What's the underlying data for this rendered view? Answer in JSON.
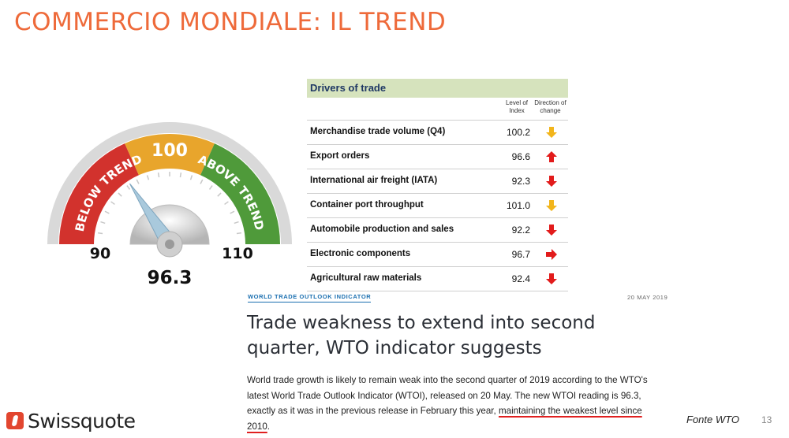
{
  "slide": {
    "title": "COMMERCIO MONDIALE: IL TREND",
    "source": "Fonte WTO",
    "page_number": "13"
  },
  "gauge": {
    "label_below": "BELOW TREND",
    "label_mid": "100",
    "label_above": "ABOVE TREND",
    "min_label": "90",
    "max_label": "110",
    "value_label": "96.3",
    "min": 90,
    "max": 110,
    "value": 96.3,
    "colors": {
      "below": "#d2322d",
      "mid": "#e8a52c",
      "above": "#4f9a3a"
    }
  },
  "drivers": {
    "title": "Drivers of trade",
    "col_level": "Level of Index",
    "col_direction": "Direction of change",
    "rows": [
      {
        "label": "Merchandise trade volume (Q4)",
        "value": "100.2",
        "direction": "down",
        "color": "#f2b51b"
      },
      {
        "label": "Export orders",
        "value": "96.6",
        "direction": "up",
        "color": "#e21b1b"
      },
      {
        "label": "International air freight (IATA)",
        "value": "92.3",
        "direction": "down",
        "color": "#e21b1b"
      },
      {
        "label": "Container port throughput",
        "value": "101.0",
        "direction": "down",
        "color": "#f2b51b"
      },
      {
        "label": "Automobile production and sales",
        "value": "92.2",
        "direction": "down",
        "color": "#e21b1b"
      },
      {
        "label": "Electronic components",
        "value": "96.7",
        "direction": "right",
        "color": "#e21b1b"
      },
      {
        "label": "Agricultural raw materials",
        "value": "92.4",
        "direction": "down",
        "color": "#e21b1b"
      }
    ]
  },
  "article": {
    "tag": "WORLD TRADE OUTLOOK INDICATOR",
    "date": "20 MAY 2019",
    "headline": "Trade weakness to extend into second quarter, WTO indicator suggests",
    "body_part1": "World trade growth is likely to remain weak into the second quarter of 2019 according to the WTO's latest World Trade Outlook Indicator (WTOI), released on 20 May. The new WTOI reading is 96.3, exactly as it was in the previous release in February this year, ",
    "body_highlight": "maintaining the weakest level since 2010",
    "body_end": "."
  },
  "brand": {
    "name": "Swissquote",
    "logo_icon": "swissquote-logo-icon"
  }
}
